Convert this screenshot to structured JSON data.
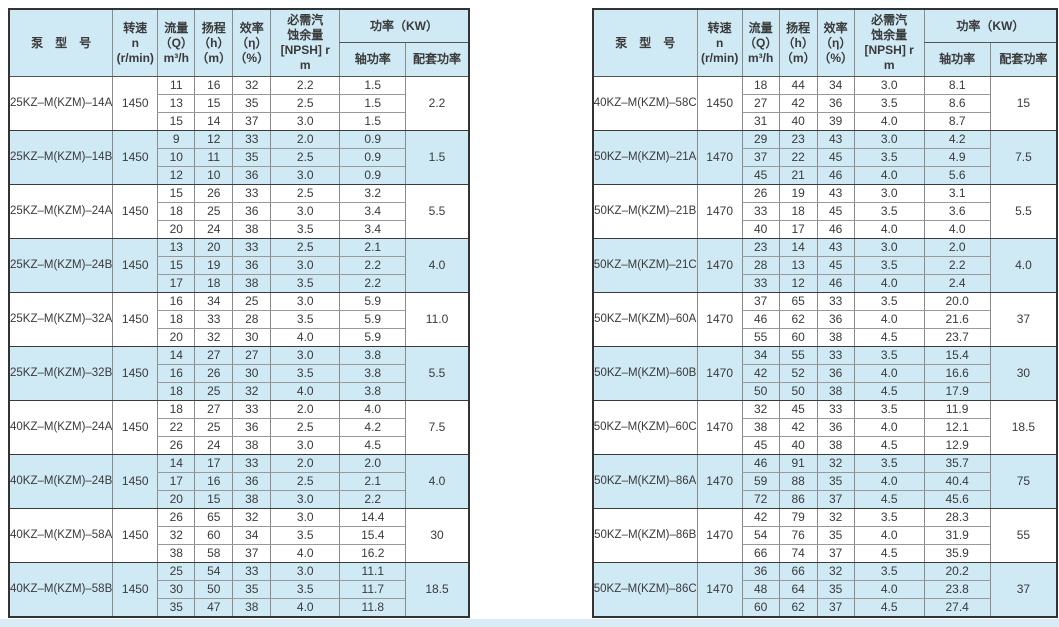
{
  "page": {
    "background": "#ffffff",
    "bottom_strip_color": "#d9ecf6",
    "colors": {
      "header_fill": "#cfe9f5",
      "row_alt_fill": "#cfe9f5",
      "row_fill": "#ffffff",
      "grid_line": "#8a8a8a",
      "outer_border": "#333333",
      "text": "#3a3a3a"
    }
  },
  "headers": {
    "model": "泵　型　号",
    "speed_lines": [
      "转速",
      "n",
      "(r/min)"
    ],
    "flow_lines": [
      "流量",
      "（Q）",
      "m³/h"
    ],
    "head_lines": [
      "扬程",
      "（h）",
      "（m）"
    ],
    "eff_lines": [
      "效率",
      "（η）",
      "（%）"
    ],
    "npsh_lines": [
      "必需汽",
      "蚀余量",
      "[NPSH] r",
      "m"
    ],
    "power": "功率（KW）",
    "shaft": "轴功率",
    "matched": "配套功率"
  },
  "left_table": {
    "groups": [
      {
        "model": "25KZ–M(KZM)–14A",
        "speed": "1450",
        "rows": [
          [
            "11",
            "16",
            "32",
            "2.2",
            "1.5"
          ],
          [
            "13",
            "15",
            "35",
            "2.5",
            "1.5"
          ],
          [
            "15",
            "14",
            "37",
            "3.0",
            "1.5"
          ]
        ],
        "matched": "2.2"
      },
      {
        "model": "25KZ–M(KZM)–14B",
        "speed": "1450",
        "rows": [
          [
            "9",
            "12",
            "33",
            "2.0",
            "0.9"
          ],
          [
            "10",
            "11",
            "35",
            "2.5",
            "0.9"
          ],
          [
            "12",
            "10",
            "36",
            "3.0",
            "0.9"
          ]
        ],
        "matched": "1.5"
      },
      {
        "model": "25KZ–M(KZM)–24A",
        "speed": "1450",
        "rows": [
          [
            "15",
            "26",
            "33",
            "2.5",
            "3.2"
          ],
          [
            "18",
            "25",
            "36",
            "3.0",
            "3.4"
          ],
          [
            "20",
            "24",
            "38",
            "3.5",
            "3.4"
          ]
        ],
        "matched": "5.5"
      },
      {
        "model": "25KZ–M(KZM)–24B",
        "speed": "1450",
        "rows": [
          [
            "13",
            "20",
            "33",
            "2.5",
            "2.1"
          ],
          [
            "15",
            "19",
            "36",
            "3.0",
            "2.2"
          ],
          [
            "17",
            "18",
            "38",
            "3.5",
            "2.2"
          ]
        ],
        "matched": "4.0"
      },
      {
        "model": "25KZ–M(KZM)–32A",
        "speed": "1450",
        "rows": [
          [
            "16",
            "34",
            "25",
            "3.0",
            "5.9"
          ],
          [
            "18",
            "33",
            "28",
            "3.5",
            "5.9"
          ],
          [
            "20",
            "32",
            "30",
            "4.0",
            "5.9"
          ]
        ],
        "matched": "11.0"
      },
      {
        "model": "25KZ–M(KZM)–32B",
        "speed": "1450",
        "rows": [
          [
            "14",
            "27",
            "27",
            "3.0",
            "3.8"
          ],
          [
            "16",
            "26",
            "30",
            "3.5",
            "3.8"
          ],
          [
            "18",
            "25",
            "32",
            "4.0",
            "3.8"
          ]
        ],
        "matched": "5.5"
      },
      {
        "model": "40KZ–M(KZM)–24A",
        "speed": "1450",
        "rows": [
          [
            "18",
            "27",
            "33",
            "2.0",
            "4.0"
          ],
          [
            "22",
            "25",
            "36",
            "2.5",
            "4.2"
          ],
          [
            "26",
            "24",
            "38",
            "3.0",
            "4.5"
          ]
        ],
        "matched": "7.5"
      },
      {
        "model": "40KZ–M(KZM)–24B",
        "speed": "1450",
        "rows": [
          [
            "14",
            "17",
            "33",
            "2.0",
            "2.0"
          ],
          [
            "17",
            "16",
            "36",
            "2.5",
            "2.1"
          ],
          [
            "20",
            "15",
            "38",
            "3.0",
            "2.2"
          ]
        ],
        "matched": "4.0"
      },
      {
        "model": "40KZ–M(KZM)–58A",
        "speed": "1450",
        "rows": [
          [
            "26",
            "65",
            "32",
            "3.0",
            "14.4"
          ],
          [
            "32",
            "60",
            "34",
            "3.5",
            "15.4"
          ],
          [
            "38",
            "58",
            "37",
            "4.0",
            "16.2"
          ]
        ],
        "matched": "30"
      },
      {
        "model": "40KZ–M(KZM)–58B",
        "speed": "1450",
        "rows": [
          [
            "25",
            "54",
            "33",
            "3.0",
            "11.1"
          ],
          [
            "30",
            "50",
            "35",
            "3.5",
            "11.7"
          ],
          [
            "35",
            "47",
            "38",
            "4.0",
            "11.8"
          ]
        ],
        "matched": "18.5"
      }
    ]
  },
  "right_table": {
    "groups": [
      {
        "model": "40KZ–M(KZM)–58C",
        "speed": "1450",
        "rows": [
          [
            "18",
            "44",
            "34",
            "3.0",
            "8.1"
          ],
          [
            "27",
            "42",
            "36",
            "3.5",
            "8.6"
          ],
          [
            "31",
            "40",
            "39",
            "4.0",
            "8.7"
          ]
        ],
        "matched": "15"
      },
      {
        "model": "50KZ–M(KZM)–21A",
        "speed": "1470",
        "rows": [
          [
            "29",
            "23",
            "43",
            "3.0",
            "4.2"
          ],
          [
            "37",
            "22",
            "45",
            "3.5",
            "4.9"
          ],
          [
            "45",
            "21",
            "46",
            "4.0",
            "5.6"
          ]
        ],
        "matched": "7.5"
      },
      {
        "model": "50KZ–M(KZM)–21B",
        "speed": "1470",
        "rows": [
          [
            "26",
            "19",
            "43",
            "3.0",
            "3.1"
          ],
          [
            "33",
            "18",
            "45",
            "3.5",
            "3.6"
          ],
          [
            "40",
            "17",
            "46",
            "4.0",
            "4.0"
          ]
        ],
        "matched": "5.5"
      },
      {
        "model": "50KZ–M(KZM)–21C",
        "speed": "1470",
        "rows": [
          [
            "23",
            "14",
            "43",
            "3.0",
            "2.0"
          ],
          [
            "28",
            "13",
            "45",
            "3.5",
            "2.2"
          ],
          [
            "33",
            "12",
            "46",
            "4.0",
            "2.4"
          ]
        ],
        "matched": "4.0"
      },
      {
        "model": "50KZ–M(KZM)–60A",
        "speed": "1470",
        "rows": [
          [
            "37",
            "65",
            "33",
            "3.5",
            "20.0"
          ],
          [
            "46",
            "62",
            "36",
            "4.0",
            "21.6"
          ],
          [
            "55",
            "60",
            "38",
            "4.5",
            "23.7"
          ]
        ],
        "matched": "37"
      },
      {
        "model": "50KZ–M(KZM)–60B",
        "speed": "1470",
        "rows": [
          [
            "34",
            "55",
            "33",
            "3.5",
            "15.4"
          ],
          [
            "42",
            "52",
            "36",
            "4.0",
            "16.6"
          ],
          [
            "50",
            "50",
            "38",
            "4.5",
            "17.9"
          ]
        ],
        "matched": "30"
      },
      {
        "model": "50KZ–M(KZM)–60C",
        "speed": "1470",
        "rows": [
          [
            "32",
            "45",
            "33",
            "3.5",
            "11.9"
          ],
          [
            "38",
            "42",
            "36",
            "4.0",
            "12.1"
          ],
          [
            "45",
            "40",
            "38",
            "4.5",
            "12.9"
          ]
        ],
        "matched": "18.5"
      },
      {
        "model": "50KZ–M(KZM)–86A",
        "speed": "1470",
        "rows": [
          [
            "46",
            "91",
            "32",
            "3.5",
            "35.7"
          ],
          [
            "59",
            "88",
            "35",
            "4.0",
            "40.4"
          ],
          [
            "72",
            "86",
            "37",
            "4.5",
            "45.6"
          ]
        ],
        "matched": "75"
      },
      {
        "model": "50KZ–M(KZM)–86B",
        "speed": "1470",
        "rows": [
          [
            "42",
            "79",
            "32",
            "3.5",
            "28.3"
          ],
          [
            "54",
            "76",
            "35",
            "4.0",
            "31.9"
          ],
          [
            "66",
            "74",
            "37",
            "4.5",
            "35.9"
          ]
        ],
        "matched": "55"
      },
      {
        "model": "50KZ–M(KZM)–86C",
        "speed": "1470",
        "rows": [
          [
            "36",
            "66",
            "32",
            "3.5",
            "20.2"
          ],
          [
            "48",
            "64",
            "35",
            "4.0",
            "23.8"
          ],
          [
            "60",
            "62",
            "37",
            "4.5",
            "27.4"
          ]
        ],
        "matched": "37"
      }
    ]
  }
}
